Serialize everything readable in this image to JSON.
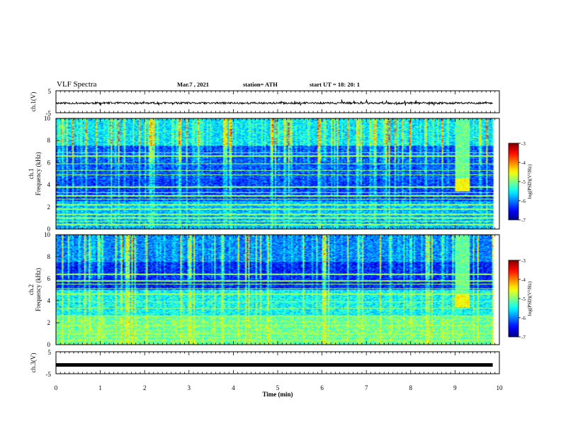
{
  "header": {
    "title": "VLF Spectra",
    "date": "Mar.7 , 2021",
    "station": "station= ATH",
    "start": "start UT = 18: 20: 1"
  },
  "chart_data": [
    {
      "type": "line",
      "title": "",
      "ylabel": "ch.1(V)",
      "xlabel": "",
      "xlim": [
        0,
        10
      ],
      "ylim": [
        -5,
        5
      ],
      "yticks": [
        "5",
        "-5"
      ],
      "series": [
        {
          "x": [
            0,
            9.85
          ],
          "values": [
            -0.6,
            -0.6
          ]
        }
      ]
    },
    {
      "type": "heatmap",
      "title": "",
      "ylabel_line1": "ch.1",
      "ylabel_line2": "Frequency (kHz)",
      "xlim": [
        0,
        10
      ],
      "ylim": [
        0,
        10
      ],
      "yticks": [
        "0",
        "2",
        "4",
        "6",
        "8",
        "10"
      ],
      "colorbar": {
        "label": "log(PSD)(V²/Hz)",
        "range": [
          -7,
          -3
        ],
        "ticks": [
          "-3",
          "-4",
          "-5",
          "-6",
          "-7"
        ]
      },
      "bright_region": {
        "x_start": 9.0,
        "x_end": 9.35,
        "freq_low": 3.4,
        "freq_high": 4.6,
        "value": -4.5
      }
    },
    {
      "type": "heatmap",
      "title": "",
      "ylabel_line1": "ch.2",
      "ylabel_line2": "Frequency (kHz)",
      "xlim": [
        0,
        10
      ],
      "ylim": [
        0,
        10
      ],
      "yticks": [
        "0",
        "2",
        "4",
        "6",
        "8",
        "10"
      ],
      "colorbar": {
        "label": "log(PSD)(V²/Hz)",
        "range": [
          -7,
          -3
        ],
        "ticks": [
          "-3",
          "-4",
          "-5",
          "-6",
          "-7"
        ]
      },
      "bright_region": {
        "x_start": 9.0,
        "x_end": 9.35,
        "freq_low": 3.4,
        "freq_high": 4.6,
        "value": -4.5
      }
    },
    {
      "type": "line",
      "title": "",
      "ylabel": "ch.3(V)",
      "xlabel": "Time (min)",
      "xlim": [
        0,
        10
      ],
      "ylim": [
        -5,
        5
      ],
      "yticks": [
        "5",
        "-5"
      ],
      "xticks": [
        "0",
        "1",
        "2",
        "3",
        "4",
        "5",
        "6",
        "7",
        "8",
        "9",
        "10"
      ],
      "series": [
        {
          "x": [
            0,
            9.85
          ],
          "values": [
            -1.0,
            -1.0
          ]
        }
      ]
    }
  ]
}
